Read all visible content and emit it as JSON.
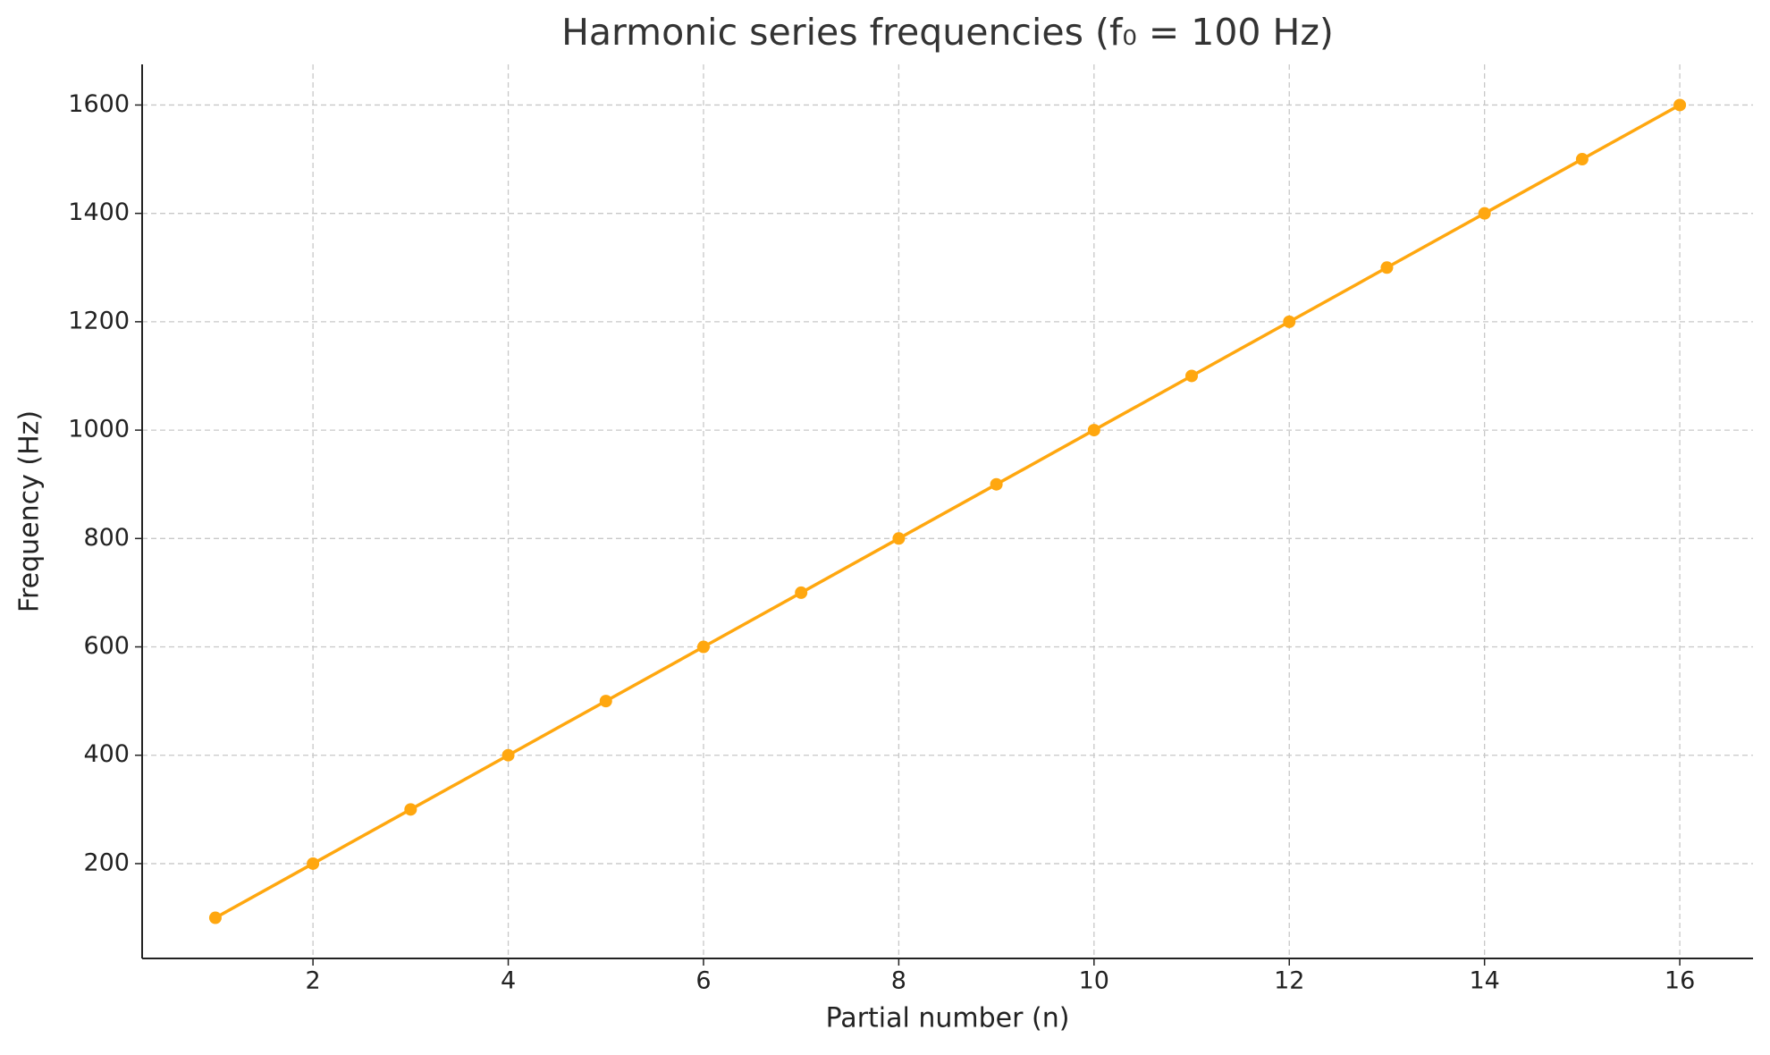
{
  "chart_data": {
    "type": "line",
    "title": "Harmonic series frequencies (f₀ = 100 Hz)",
    "x_label": "Partial number (n)",
    "y_label": "Frequency (Hz)",
    "x": [
      1,
      2,
      3,
      4,
      5,
      6,
      7,
      8,
      9,
      10,
      11,
      12,
      13,
      14,
      15,
      16
    ],
    "values": [
      100,
      200,
      300,
      400,
      500,
      600,
      700,
      800,
      900,
      1000,
      1100,
      1200,
      1300,
      1400,
      1500,
      1600
    ],
    "color": "#ffa70f",
    "xlim": [
      0.25,
      16.75
    ],
    "xticks": [
      2,
      4,
      6,
      8,
      10,
      12,
      14,
      16
    ],
    "ylim": [
      25,
      1675
    ],
    "yticks": [
      200,
      400,
      600,
      800,
      1000,
      1200,
      1400,
      1600
    ],
    "grid": true
  }
}
